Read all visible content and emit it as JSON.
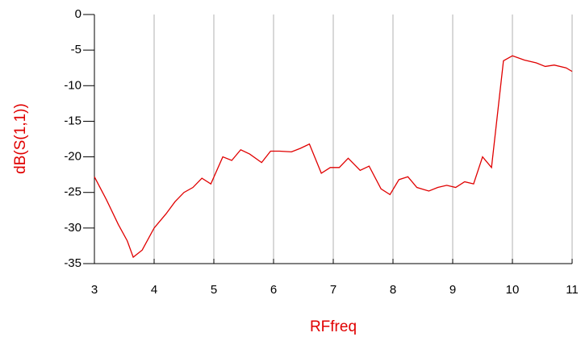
{
  "chart_data": {
    "type": "line",
    "x_label": "RFfreq",
    "y_label": "dB(S(1,1))",
    "x": [
      3.0,
      3.2,
      3.4,
      3.55,
      3.65,
      3.8,
      4.0,
      4.2,
      4.35,
      4.5,
      4.65,
      4.8,
      4.95,
      5.15,
      5.3,
      5.45,
      5.6,
      5.8,
      5.95,
      6.1,
      6.3,
      6.45,
      6.6,
      6.8,
      6.95,
      7.1,
      7.25,
      7.45,
      7.6,
      7.8,
      7.95,
      8.1,
      8.25,
      8.4,
      8.6,
      8.75,
      8.9,
      9.05,
      9.2,
      9.35,
      9.5,
      9.65,
      9.85,
      10.0,
      10.2,
      10.4,
      10.55,
      10.7,
      10.9,
      11.0
    ],
    "series": [
      {
        "name": "dB(S(1,1))",
        "color": "#e00000",
        "values": [
          -22.8,
          -26.0,
          -29.5,
          -31.8,
          -34.1,
          -33.1,
          -30.0,
          -28.0,
          -26.3,
          -25.0,
          -24.3,
          -23.0,
          -23.8,
          -20.0,
          -20.5,
          -19.0,
          -19.6,
          -20.8,
          -19.2,
          -19.2,
          -19.3,
          -18.8,
          -18.2,
          -22.3,
          -21.5,
          -21.5,
          -20.2,
          -21.9,
          -21.3,
          -24.5,
          -25.3,
          -23.2,
          -22.8,
          -24.3,
          -24.8,
          -24.3,
          -24.0,
          -24.3,
          -23.5,
          -23.8,
          -20.0,
          -21.5,
          -6.5,
          -5.8,
          -6.4,
          -6.8,
          -7.3,
          -7.1,
          -7.5,
          -8.0
        ]
      }
    ],
    "xlim": [
      3,
      11
    ],
    "xticks": [
      3,
      4,
      5,
      6,
      7,
      8,
      9,
      10,
      11
    ],
    "ylim": [
      -35,
      0
    ],
    "yticks": [
      0,
      -5,
      -10,
      -15,
      -20,
      -25,
      -30,
      -35
    ],
    "xgrid": true,
    "ygrid": false
  }
}
